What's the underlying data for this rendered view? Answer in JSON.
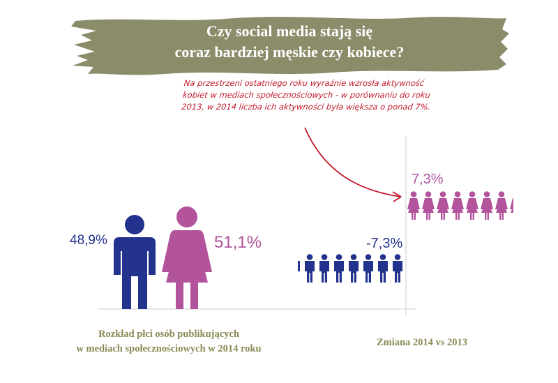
{
  "header": {
    "title_line1": "Czy social media stają się",
    "title_line2": "coraz bardziej męskie czy kobiece?",
    "banner_color": "#8b8c6a"
  },
  "annotation": {
    "line1": "Na przestrzeni ostatniego roku wyraźnie wzrosła aktywność",
    "line2": "kobiet w mediach społecznościowych - w porównaniu do roku",
    "line3": "2013, w 2014 liczba ich aktywności była większa o ponad 7%.",
    "color": "#c0182b"
  },
  "colors": {
    "male": "#23328c",
    "female": "#b2539c",
    "caption": "#8b8a55"
  },
  "chart_data": [
    {
      "type": "pictogram",
      "categories": [
        "mężczyźni",
        "kobiety"
      ],
      "values": [
        48.9,
        51.1
      ],
      "labels": [
        "48,9%",
        "51,1%"
      ],
      "icons": [
        "male-figure-icon",
        "female-figure-icon"
      ],
      "xlabel": "Rozkład płci osób publikujących w mediach społecznościowych w 2014 roku"
    },
    {
      "type": "pictogram",
      "categories": [
        "mężczyźni",
        "kobiety"
      ],
      "values": [
        -7.3,
        7.3
      ],
      "labels": [
        "-7,3%",
        "7,3%"
      ],
      "icons": [
        "male-figure-icon",
        "female-figure-icon"
      ],
      "xlabel": "Zmiana 2014 vs 2013"
    }
  ],
  "captions": {
    "left_line1": "Rozkład płci osób publikujących",
    "left_line2": "w mediach społecznościowych w 2014 roku",
    "right": "Zmiana 2014 vs 2013"
  }
}
